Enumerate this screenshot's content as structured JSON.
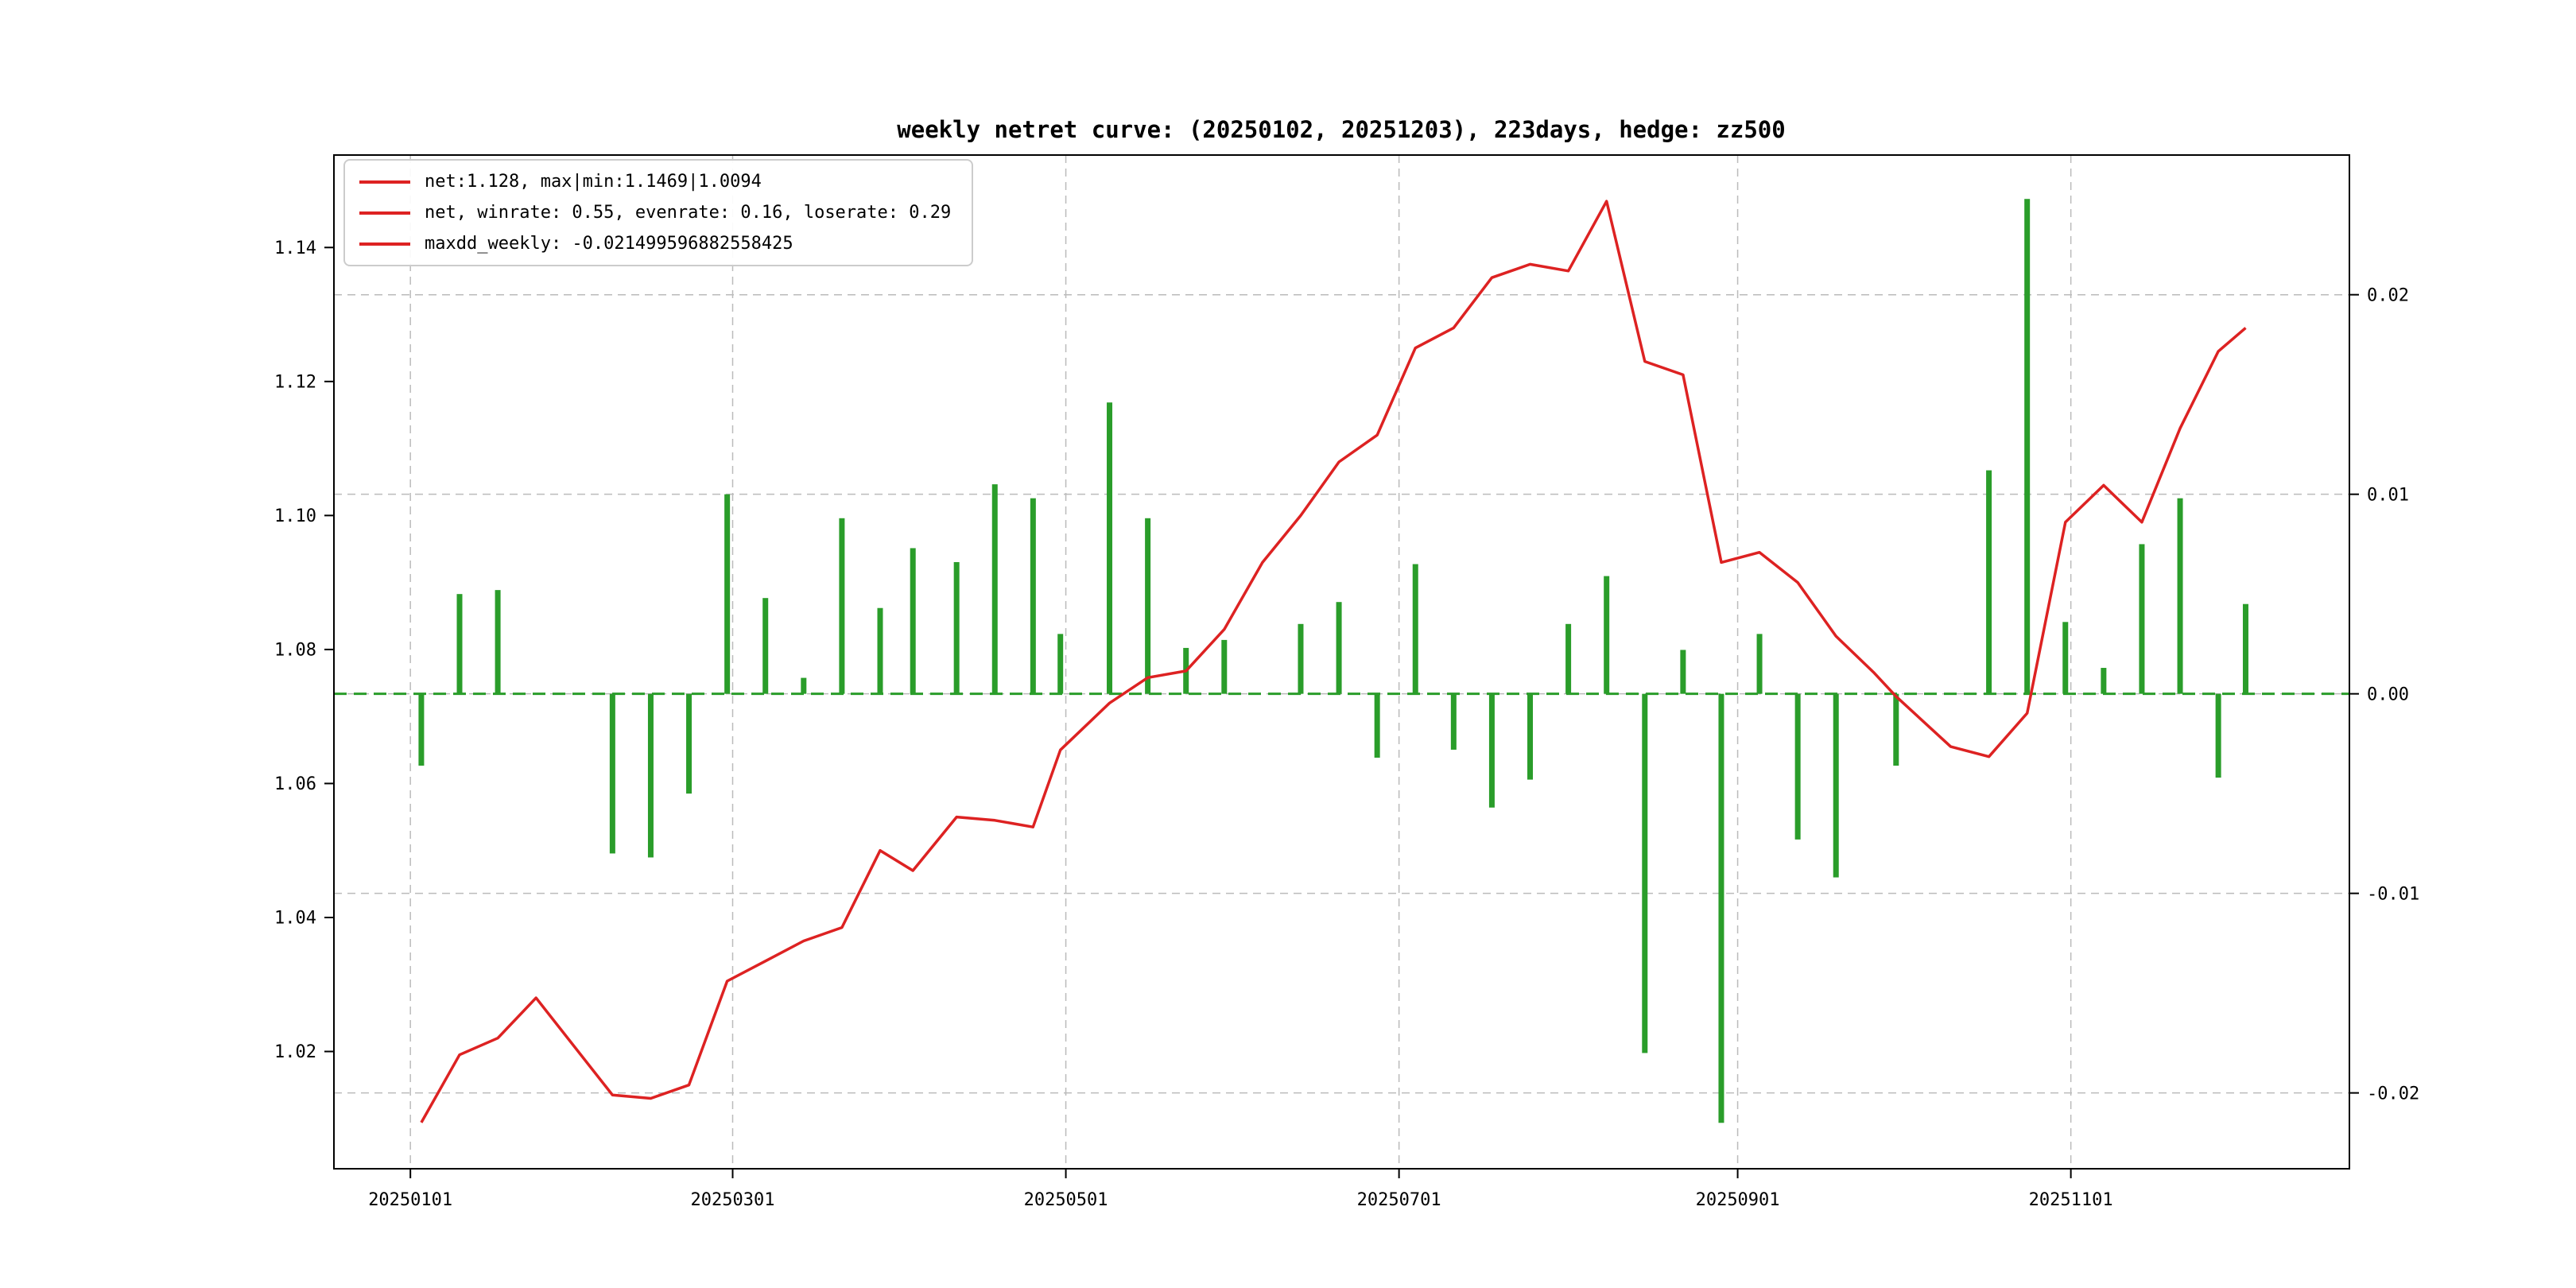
{
  "colors": {
    "line": "#dd2222",
    "bar": "#2a9d2a",
    "zero_line": "#2a9d2a",
    "grid": "#bbbbbb",
    "axis": "#000000",
    "background": "#ffffff"
  },
  "chart_data": {
    "type": "line+bar",
    "title": "weekly netret curve: (20250102, 20251203), 223days, hedge: zz500",
    "legend": [
      "net:1.128, max|min:1.1469|1.0094",
      "net, winrate: 0.55, evenrate: 0.16, loserate: 0.29",
      "maxdd_weekly: -0.021499596882558425"
    ],
    "x_axis": {
      "tick_labels": [
        "20250101",
        "20250301",
        "20250501",
        "20250701",
        "20250901",
        "20251101"
      ],
      "tick_days": [
        0,
        59,
        120,
        181,
        243,
        304
      ],
      "lim_days": [
        -14,
        355
      ]
    },
    "left_axis": {
      "series": "net",
      "tick_labels": [
        "1.02",
        "1.04",
        "1.06",
        "1.08",
        "1.10",
        "1.12",
        "1.14"
      ],
      "tick_values": [
        1.02,
        1.04,
        1.06,
        1.08,
        1.1,
        1.12,
        1.14
      ],
      "lim": [
        1.0025,
        1.1538
      ]
    },
    "right_axis": {
      "series": "weekly_ret",
      "tick_labels": [
        "0.02",
        "0.01",
        "0.00",
        "-0.01",
        "-0.02"
      ],
      "tick_values": [
        0.02,
        0.01,
        0.0,
        -0.01,
        -0.02
      ],
      "lim": [
        -0.0238,
        0.027
      ]
    },
    "zero_line_value": 0.0,
    "dates": [
      "20250103",
      "20250110",
      "20250117",
      "20250124",
      "20250207",
      "20250214",
      "20250221",
      "20250228",
      "20250307",
      "20250314",
      "20250321",
      "20250328",
      "20250403",
      "20250411",
      "20250418",
      "20250425",
      "20250430",
      "20250509",
      "20250516",
      "20250523",
      "20250530",
      "20250606",
      "20250613",
      "20250620",
      "20250627",
      "20250704",
      "20250711",
      "20250718",
      "20250725",
      "20250801",
      "20250808",
      "20250815",
      "20250822",
      "20250829",
      "20250905",
      "20250912",
      "20250919",
      "20250926",
      "20250930",
      "20251010",
      "20251017",
      "20251024",
      "20251031",
      "20251107",
      "20251114",
      "20251121",
      "20251128",
      "20251203"
    ],
    "net": [
      1.0094,
      1.0195,
      1.022,
      1.028,
      1.0135,
      1.013,
      1.015,
      1.0305,
      1.0335,
      1.0365,
      1.0385,
      1.05,
      1.047,
      1.055,
      1.0545,
      1.0535,
      1.065,
      1.072,
      1.0758,
      1.0768,
      1.083,
      1.093,
      1.1,
      1.108,
      1.112,
      1.125,
      1.128,
      1.1355,
      1.1375,
      1.1365,
      1.1469,
      1.123,
      1.121,
      1.093,
      1.0945,
      1.09,
      1.082,
      1.0765,
      1.073,
      1.0655,
      1.064,
      1.0705,
      1.099,
      1.1045,
      1.099,
      1.113,
      1.1245,
      1.128
    ],
    "weekly_ret": [
      -0.0036,
      0.005,
      0.0052,
      0.0,
      -0.008,
      -0.0082,
      -0.005,
      0.01,
      0.0048,
      0.0008,
      0.0088,
      0.0043,
      0.0073,
      0.0066,
      0.0105,
      0.0098,
      0.003,
      0.0146,
      0.0088,
      0.0023,
      0.0027,
      0.0,
      0.0035,
      0.0046,
      -0.0032,
      0.0065,
      -0.0028,
      -0.0057,
      -0.0043,
      0.0035,
      0.0059,
      -0.018,
      0.0022,
      -0.0215,
      0.003,
      -0.0073,
      -0.0092,
      0.0,
      -0.0036,
      0.0,
      0.0112,
      0.0248,
      0.0036,
      0.0013,
      0.0075,
      0.0098,
      -0.0042,
      0.0045
    ],
    "stats": {
      "net_final": 1.128,
      "net_max": 1.1469,
      "net_min": 1.0094,
      "winrate": 0.55,
      "evenrate": 0.16,
      "loserate": 0.29,
      "maxdd_weekly": -0.021499596882558425
    }
  }
}
